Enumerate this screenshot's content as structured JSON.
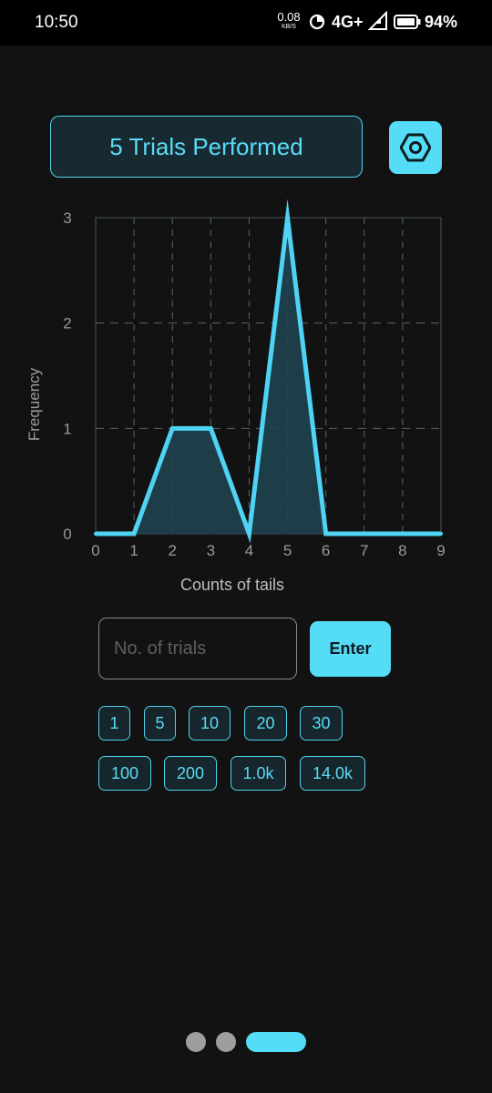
{
  "status_bar": {
    "time": "10:50",
    "net_speed_value": "0.08",
    "net_speed_unit": "KB/S",
    "network": "4G+",
    "battery": "94%"
  },
  "header": {
    "trials_label": "5 Trials Performed",
    "settings_icon": "hexagon-gear-icon"
  },
  "chart_data": {
    "type": "area",
    "x": [
      0,
      1,
      2,
      3,
      4,
      5,
      6,
      7,
      8,
      9
    ],
    "values": [
      0,
      0,
      1,
      1,
      0,
      3,
      0,
      0,
      0,
      0
    ],
    "xlabel": "Counts of tails",
    "ylabel": "Frequency",
    "xlim": [
      0,
      9
    ],
    "ylim": [
      0,
      3
    ],
    "x_ticks": [
      "0",
      "1",
      "2",
      "3",
      "4",
      "5",
      "6",
      "7",
      "8",
      "9"
    ],
    "y_ticks": [
      "0",
      "1",
      "2",
      "3"
    ],
    "grid": true,
    "line_color": "#4fd3f5",
    "fill_color": "#1f4350"
  },
  "input": {
    "value": "",
    "placeholder": "No. of trials"
  },
  "enter_label": "Enter",
  "presets": [
    "1",
    "5",
    "10",
    "20",
    "30",
    "100",
    "200",
    "1.0k",
    "14.0k"
  ],
  "pager": {
    "count": 3,
    "active": 2
  },
  "colors": {
    "accent": "#55dcf7",
    "background": "#121212"
  }
}
